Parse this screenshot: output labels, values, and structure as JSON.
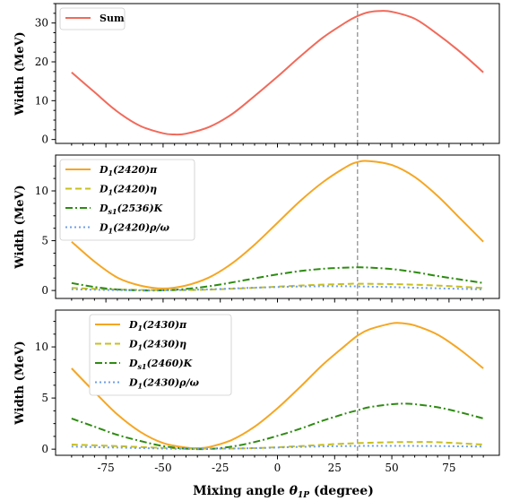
{
  "chart_data": {
    "type": "line",
    "xlabel": "Mixing angle θ1P (degree)",
    "xlim": [
      -97,
      97
    ],
    "xticks": [
      -75,
      -50,
      -25,
      0,
      25,
      50,
      75
    ],
    "vline_x": 35,
    "colors": {
      "sum": "#f26a5a",
      "pi": "#f5a623",
      "eta": "#c8c020",
      "K": "#2e8b12",
      "rho": "#6fa0e8",
      "vline": "#888888"
    },
    "panels": [
      {
        "ylabel": "Width (MeV)",
        "ylim": [
          -1,
          35
        ],
        "yticks": [
          0,
          10,
          20,
          30
        ],
        "legend": "top-left",
        "series": [
          {
            "name": "Sum",
            "style": "solid",
            "color_key": "sum",
            "x": [
              -90,
              -80,
              -70,
              -60,
              -50,
              -45,
              -40,
              -30,
              -20,
              -10,
              0,
              10,
              20,
              30,
              35,
              40,
              45,
              50,
              60,
              70,
              80,
              90
            ],
            "y": [
              17.3,
              12.2,
              7.2,
              3.5,
              1.6,
              1.3,
              1.5,
              3.2,
              6.5,
              11.2,
              16.2,
              21.4,
              26.3,
              30.2,
              31.8,
              32.8,
              33.1,
              32.9,
              31.1,
              27.1,
              22.5,
              17.3
            ]
          }
        ]
      },
      {
        "ylabel": "Width (MeV)",
        "ylim": [
          -0.8,
          13.6
        ],
        "yticks": [
          0,
          5,
          10
        ],
        "legend": "top-left",
        "series": [
          {
            "name": "D1(2420)π",
            "name_main": "D",
            "name_sub": "1",
            "name_rest": "(2420)π",
            "style": "solid",
            "color_key": "pi",
            "x": [
              -90,
              -80,
              -70,
              -60,
              -50,
              -40,
              -30,
              -20,
              -10,
              0,
              10,
              20,
              30,
              35,
              40,
              50,
              60,
              70,
              80,
              90
            ],
            "y": [
              4.9,
              2.9,
              1.3,
              0.5,
              0.2,
              0.5,
              1.3,
              2.7,
              4.6,
              6.8,
              9.0,
              10.9,
              12.4,
              12.9,
              13.0,
              12.6,
              11.4,
              9.5,
              7.2,
              4.9
            ]
          },
          {
            "name": "D1(2420)η",
            "name_main": "D",
            "name_sub": "1",
            "name_rest": "(2420)η",
            "style": "dashed",
            "color_key": "eta",
            "x": [
              -90,
              -70,
              -50,
              -40,
              -30,
              -10,
              10,
              30,
              35,
              50,
              70,
              90
            ],
            "y": [
              0.25,
              0.1,
              0.03,
              0.04,
              0.09,
              0.27,
              0.5,
              0.66,
              0.68,
              0.64,
              0.5,
              0.25
            ]
          },
          {
            "name": "Ds1(2536)K",
            "name_main": "D",
            "name_sub": "s1",
            "name_rest": "(2536)K",
            "style": "dashdot",
            "color_key": "K",
            "x": [
              -90,
              -80,
              -70,
              -60,
              -55,
              -50,
              -40,
              -30,
              -20,
              -10,
              0,
              10,
              20,
              30,
              35,
              40,
              50,
              60,
              70,
              80,
              90
            ],
            "y": [
              0.75,
              0.35,
              0.1,
              0.01,
              0.0,
              0.02,
              0.15,
              0.42,
              0.8,
              1.22,
              1.62,
              1.95,
              2.18,
              2.3,
              2.32,
              2.3,
              2.15,
              1.85,
              1.45,
              1.1,
              0.75
            ]
          },
          {
            "name": "D1(2420)ρ/ω",
            "name_main": "D",
            "name_sub": "1",
            "name_rest": "(2420)ρ/ω",
            "style": "dotted",
            "color_key": "rho",
            "x": [
              -90,
              -70,
              -50,
              -40,
              -30,
              -10,
              10,
              20,
              30,
              35,
              50,
              70,
              90
            ],
            "y": [
              0.12,
              0.04,
              0.03,
              0.06,
              0.12,
              0.28,
              0.4,
              0.42,
              0.42,
              0.41,
              0.34,
              0.22,
              0.12
            ]
          }
        ]
      },
      {
        "ylabel": "Width (MeV)",
        "ylim": [
          -0.6,
          13.6
        ],
        "yticks": [
          0,
          5,
          10
        ],
        "legend": "upper-left-inset",
        "series": [
          {
            "name": "D1(2430)π",
            "name_main": "D",
            "name_sub": "1",
            "name_rest": "(2430)π",
            "style": "solid",
            "color_key": "pi",
            "x": [
              -90,
              -80,
              -70,
              -60,
              -50,
              -40,
              -35,
              -30,
              -20,
              -10,
              0,
              10,
              20,
              30,
              35,
              40,
              50,
              55,
              60,
              70,
              80,
              90
            ],
            "y": [
              7.9,
              5.6,
              3.4,
              1.7,
              0.6,
              0.15,
              0.1,
              0.2,
              0.9,
              2.2,
              4.0,
              6.1,
              8.3,
              10.2,
              11.1,
              11.7,
              12.3,
              12.3,
              12.1,
              11.2,
              9.7,
              7.9
            ]
          },
          {
            "name": "D1(2430)η",
            "name_main": "D",
            "name_sub": "1",
            "name_rest": "(2430)η",
            "style": "dashed",
            "color_key": "eta",
            "x": [
              -90,
              -70,
              -50,
              -40,
              -30,
              -10,
              10,
              30,
              50,
              60,
              70,
              90
            ],
            "y": [
              0.45,
              0.3,
              0.12,
              0.06,
              0.05,
              0.1,
              0.3,
              0.55,
              0.68,
              0.7,
              0.68,
              0.45
            ]
          },
          {
            "name": "Ds1(2460)K",
            "name_main": "D",
            "name_sub": "s1",
            "name_rest": "(2460)K",
            "style": "dashdot",
            "color_key": "K",
            "x": [
              -90,
              -80,
              -70,
              -60,
              -50,
              -40,
              -30,
              -20,
              -10,
              0,
              10,
              20,
              30,
              35,
              40,
              50,
              55,
              60,
              70,
              80,
              90
            ],
            "y": [
              3.0,
              2.2,
              1.4,
              0.8,
              0.3,
              0.05,
              0.02,
              0.25,
              0.7,
              1.3,
              2.0,
              2.8,
              3.5,
              3.8,
              4.1,
              4.4,
              4.45,
              4.4,
              4.1,
              3.6,
              3.0
            ]
          },
          {
            "name": "D1(2430)ρ/ω",
            "name_main": "D",
            "name_sub": "1",
            "name_rest": "(2430)ρ/ω",
            "style": "dotted",
            "color_key": "rho",
            "x": [
              -90,
              -70,
              -50,
              -40,
              -30,
              -10,
              10,
              30,
              50,
              70,
              90
            ],
            "y": [
              0.25,
              0.15,
              0.06,
              0.03,
              0.04,
              0.1,
              0.22,
              0.3,
              0.32,
              0.3,
              0.25
            ]
          }
        ]
      }
    ]
  }
}
